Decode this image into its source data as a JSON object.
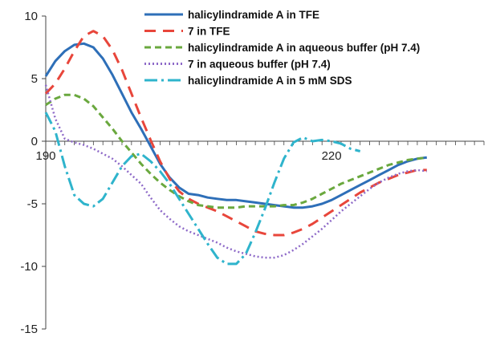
{
  "chart_data": {
    "type": "line",
    "title": "",
    "xlabel": "",
    "ylabel": "",
    "xlim": [
      190,
      236
    ],
    "ylim": [
      -15,
      10
    ],
    "grid": false,
    "legend": "top-right",
    "x_tick_labels": [
      "190",
      "220"
    ],
    "y_tick_labels": [
      "10",
      "5",
      "0",
      "-5",
      "-10",
      "-15"
    ],
    "series": [
      {
        "name": "halicylindramide A in TFE",
        "color": "#2e6fb8",
        "dash": "solid",
        "points": [
          [
            190,
            5.2
          ],
          [
            191,
            6.4
          ],
          [
            192,
            7.2
          ],
          [
            193,
            7.7
          ],
          [
            194,
            7.8
          ],
          [
            195,
            7.5
          ],
          [
            196,
            6.6
          ],
          [
            197,
            5.3
          ],
          [
            198,
            3.8
          ],
          [
            199,
            2.3
          ],
          [
            200,
            1.0
          ],
          [
            201,
            -0.4
          ],
          [
            202,
            -1.8
          ],
          [
            203,
            -2.9
          ],
          [
            204,
            -3.7
          ],
          [
            205,
            -4.2
          ],
          [
            206,
            -4.3
          ],
          [
            207,
            -4.5
          ],
          [
            208,
            -4.6
          ],
          [
            209,
            -4.7
          ],
          [
            210,
            -4.7
          ],
          [
            211,
            -4.8
          ],
          [
            212,
            -4.9
          ],
          [
            213,
            -5.0
          ],
          [
            214,
            -5.1
          ],
          [
            215,
            -5.2
          ],
          [
            216,
            -5.3
          ],
          [
            217,
            -5.3
          ],
          [
            218,
            -5.2
          ],
          [
            219,
            -5.0
          ],
          [
            220,
            -4.7
          ],
          [
            221,
            -4.3
          ],
          [
            222,
            -3.9
          ],
          [
            223,
            -3.5
          ],
          [
            224,
            -3.1
          ],
          [
            225,
            -2.7
          ],
          [
            226,
            -2.3
          ],
          [
            227,
            -1.9
          ],
          [
            228,
            -1.6
          ],
          [
            229,
            -1.4
          ],
          [
            230,
            -1.3
          ]
        ]
      },
      {
        "name": "7 in TFE",
        "color": "#e8463b",
        "dash": "long",
        "points": [
          [
            190,
            3.8
          ],
          [
            191,
            4.6
          ],
          [
            192,
            5.8
          ],
          [
            193,
            7.2
          ],
          [
            194,
            8.4
          ],
          [
            195,
            8.8
          ],
          [
            196,
            8.4
          ],
          [
            197,
            7.3
          ],
          [
            198,
            5.7
          ],
          [
            199,
            3.8
          ],
          [
            200,
            1.9
          ],
          [
            201,
            0.1
          ],
          [
            202,
            -1.6
          ],
          [
            203,
            -3.0
          ],
          [
            204,
            -4.0
          ],
          [
            205,
            -4.6
          ],
          [
            206,
            -5.0
          ],
          [
            207,
            -5.3
          ],
          [
            208,
            -5.6
          ],
          [
            209,
            -6.0
          ],
          [
            210,
            -6.4
          ],
          [
            211,
            -6.8
          ],
          [
            212,
            -7.2
          ],
          [
            213,
            -7.4
          ],
          [
            214,
            -7.5
          ],
          [
            215,
            -7.5
          ],
          [
            216,
            -7.3
          ],
          [
            217,
            -7.0
          ],
          [
            218,
            -6.6
          ],
          [
            219,
            -6.1
          ],
          [
            220,
            -5.6
          ],
          [
            221,
            -5.1
          ],
          [
            222,
            -4.6
          ],
          [
            223,
            -4.1
          ],
          [
            224,
            -3.7
          ],
          [
            225,
            -3.3
          ],
          [
            226,
            -3.0
          ],
          [
            227,
            -2.7
          ],
          [
            228,
            -2.5
          ],
          [
            229,
            -2.3
          ],
          [
            230,
            -2.3
          ]
        ]
      },
      {
        "name": "halicylindramide A in aqueous buffer (pH 7.4)",
        "color": "#6aa83e",
        "dash": "medium",
        "points": [
          [
            190,
            2.9
          ],
          [
            191,
            3.4
          ],
          [
            192,
            3.7
          ],
          [
            193,
            3.7
          ],
          [
            194,
            3.4
          ],
          [
            195,
            2.8
          ],
          [
            196,
            1.9
          ],
          [
            197,
            1.0
          ],
          [
            198,
            0.0
          ],
          [
            199,
            -0.9
          ],
          [
            200,
            -1.8
          ],
          [
            201,
            -2.6
          ],
          [
            202,
            -3.3
          ],
          [
            203,
            -3.9
          ],
          [
            204,
            -4.4
          ],
          [
            205,
            -4.8
          ],
          [
            206,
            -5.1
          ],
          [
            207,
            -5.2
          ],
          [
            208,
            -5.3
          ],
          [
            209,
            -5.3
          ],
          [
            210,
            -5.3
          ],
          [
            211,
            -5.2
          ],
          [
            212,
            -5.2
          ],
          [
            213,
            -5.2
          ],
          [
            214,
            -5.2
          ],
          [
            215,
            -5.1
          ],
          [
            216,
            -5.1
          ],
          [
            217,
            -4.9
          ],
          [
            218,
            -4.6
          ],
          [
            219,
            -4.2
          ],
          [
            220,
            -3.8
          ],
          [
            221,
            -3.4
          ],
          [
            222,
            -3.1
          ],
          [
            223,
            -2.8
          ],
          [
            224,
            -2.5
          ],
          [
            225,
            -2.2
          ],
          [
            226,
            -1.9
          ],
          [
            227,
            -1.7
          ],
          [
            228,
            -1.5
          ],
          [
            229,
            -1.4
          ],
          [
            230,
            -1.3
          ]
        ]
      },
      {
        "name": "7 in aqueous buffer (pH 7.4)",
        "color": "#8e6ac8",
        "dash": "dotted",
        "points": [
          [
            190,
            4.5
          ],
          [
            191,
            1.8
          ],
          [
            192,
            0.2
          ],
          [
            193,
            -0.1
          ],
          [
            194,
            -0.3
          ],
          [
            195,
            -0.6
          ],
          [
            196,
            -1.0
          ],
          [
            197,
            -1.4
          ],
          [
            198,
            -2.0
          ],
          [
            199,
            -2.7
          ],
          [
            200,
            -3.4
          ],
          [
            201,
            -4.5
          ],
          [
            202,
            -5.5
          ],
          [
            203,
            -6.2
          ],
          [
            204,
            -6.8
          ],
          [
            205,
            -7.2
          ],
          [
            206,
            -7.5
          ],
          [
            207,
            -7.8
          ],
          [
            208,
            -8.1
          ],
          [
            209,
            -8.5
          ],
          [
            210,
            -8.8
          ],
          [
            211,
            -9.0
          ],
          [
            212,
            -9.2
          ],
          [
            213,
            -9.3
          ],
          [
            214,
            -9.3
          ],
          [
            215,
            -9.1
          ],
          [
            216,
            -8.7
          ],
          [
            217,
            -8.2
          ],
          [
            218,
            -7.6
          ],
          [
            219,
            -7.0
          ],
          [
            220,
            -6.3
          ],
          [
            221,
            -5.6
          ],
          [
            222,
            -5.0
          ],
          [
            223,
            -4.4
          ],
          [
            224,
            -3.8
          ],
          [
            225,
            -3.3
          ],
          [
            226,
            -2.9
          ],
          [
            227,
            -2.6
          ],
          [
            228,
            -2.4
          ],
          [
            229,
            -2.3
          ],
          [
            230,
            -2.4
          ]
        ]
      },
      {
        "name": "halicylindramide A in 5 mM SDS",
        "color": "#2fb4cc",
        "dash": "dashdot",
        "points": [
          [
            190,
            2.3
          ],
          [
            191,
            0.8
          ],
          [
            192,
            -2.0
          ],
          [
            193,
            -4.3
          ],
          [
            194,
            -5.0
          ],
          [
            195,
            -5.2
          ],
          [
            196,
            -4.6
          ],
          [
            197,
            -3.3
          ],
          [
            198,
            -2.0
          ],
          [
            199,
            -1.2
          ],
          [
            200,
            -1.0
          ],
          [
            201,
            -1.6
          ],
          [
            202,
            -2.4
          ],
          [
            203,
            -3.4
          ],
          [
            204,
            -4.6
          ],
          [
            205,
            -5.8
          ],
          [
            206,
            -7.0
          ],
          [
            207,
            -8.2
          ],
          [
            208,
            -9.3
          ],
          [
            209,
            -9.8
          ],
          [
            210,
            -9.8
          ],
          [
            211,
            -9.0
          ],
          [
            212,
            -7.3
          ],
          [
            213,
            -5.4
          ],
          [
            214,
            -3.3
          ],
          [
            215,
            -1.4
          ],
          [
            216,
            -0.1
          ],
          [
            217,
            0.3
          ],
          [
            218,
            0.0
          ],
          [
            219,
            0.1
          ],
          [
            220,
            0.0
          ],
          [
            221,
            -0.2
          ],
          [
            222,
            -0.6
          ],
          [
            223,
            -0.8
          ]
        ]
      }
    ]
  }
}
